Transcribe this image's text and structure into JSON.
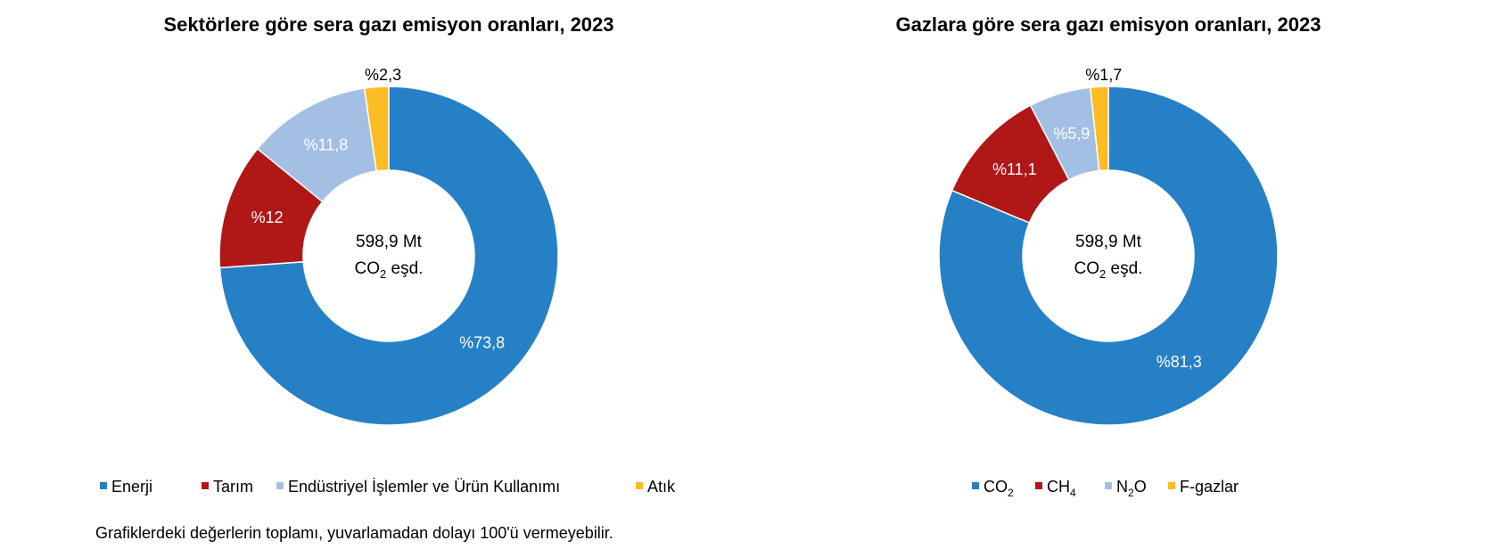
{
  "chart_data": [
    {
      "type": "pie",
      "donut": true,
      "title": "Sektörlere göre sera gazı emisyon oranları, 2023",
      "center_text": {
        "line1": "598,9 Mt",
        "line2_main": "CO",
        "line2_sub": "2",
        "line2_rest": " eşd."
      },
      "categories": [
        "Enerji",
        "Tarım",
        "Endüstriyel İşlemler ve Ürün Kullanımı",
        "Atık"
      ],
      "legend_labels": [
        [
          "Enerji",
          ""
        ],
        [
          "Tarım",
          ""
        ],
        [
          "Endüstriyel İşlemler ve Ürün Kullanımı",
          ""
        ],
        [
          "Atık",
          ""
        ]
      ],
      "values": [
        73.8,
        12,
        11.8,
        2.3
      ],
      "data_labels": [
        "%73,8",
        "%12",
        "%11,8",
        "%2,3"
      ],
      "colors": [
        "#2680C6",
        "#B01717",
        "#A4BFE4",
        "#FBBC24"
      ],
      "legend": "bottom"
    },
    {
      "type": "pie",
      "donut": true,
      "title": "Gazlara göre sera gazı emisyon oranları, 2023",
      "center_text": {
        "line1": "598,9 Mt",
        "line2_main": "CO",
        "line2_sub": "2",
        "line2_rest": " eşd."
      },
      "categories": [
        "CO2",
        "CH4",
        "N2O",
        "F-gazlar"
      ],
      "legend_labels": [
        [
          "CO",
          "2",
          ""
        ],
        [
          "CH",
          "4",
          ""
        ],
        [
          "N",
          "2",
          "O"
        ],
        [
          "F-gazlar",
          "",
          ""
        ]
      ],
      "values": [
        81.3,
        11.1,
        5.9,
        1.7
      ],
      "data_labels": [
        "%81,3",
        "%11,1",
        "%5,9",
        "%1,7"
      ],
      "colors": [
        "#2680C6",
        "#B01717",
        "#A4BFE4",
        "#FBBC24"
      ],
      "legend": "bottom"
    }
  ],
  "footnote": "Grafiklerdeki değerlerin toplamı, yuvarlamadan dolayı 100'ü vermeyebilir."
}
